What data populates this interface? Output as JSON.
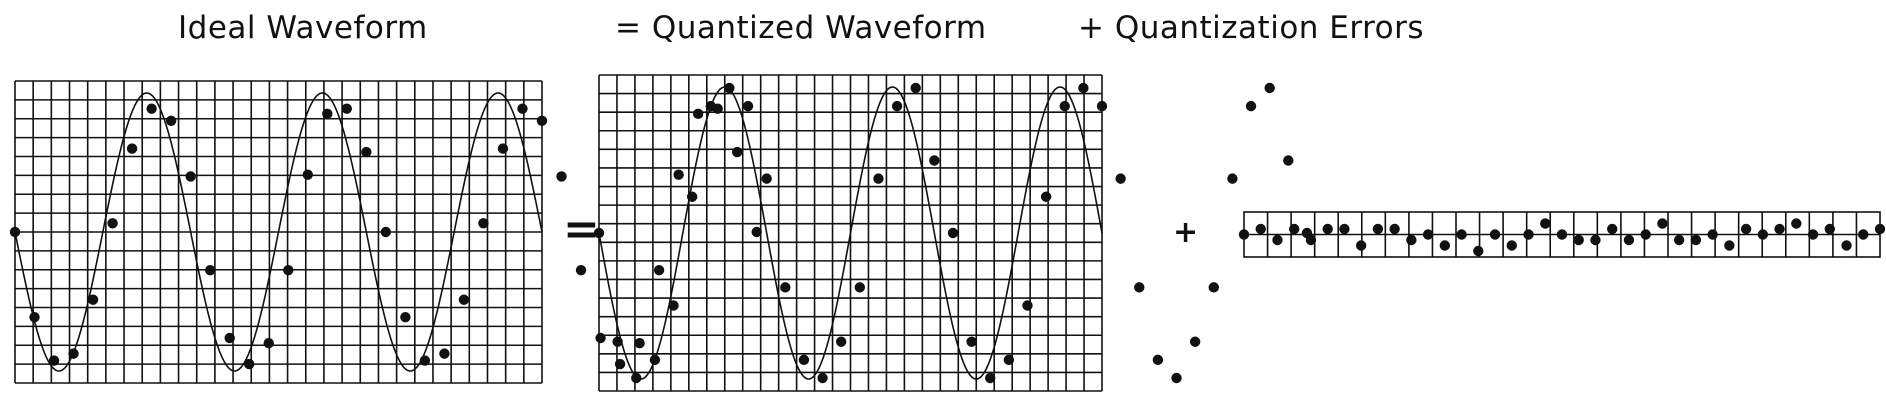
{
  "titles": {
    "ideal": "Ideal Waveform",
    "quantized": "= Quantized Waveform",
    "errors": "+ Quantization Errors"
  },
  "operators": {
    "equals": "=",
    "plus": "+"
  },
  "colors": {
    "line": "#111111",
    "background": "#ffffff"
  },
  "waveform": {
    "cycles": 3,
    "samples_per_cycle": 9,
    "start_phase": "zero",
    "initial_direction": "down",
    "ideal_levels": [
      8,
      3.1,
      0.6,
      1,
      4.1,
      8.5,
      12.8,
      15.1,
      14.4,
      11.2,
      5.8,
      1.9,
      0.4,
      1.6,
      5.8,
      11.3,
      14.8,
      15.1,
      12.6,
      8,
      3.1,
      0.6,
      1,
      4.1,
      8.5,
      12.8,
      15.1,
      14.4,
      11.2,
      5.8,
      1.9,
      0.4,
      1.6,
      5.8,
      11.3,
      14.8,
      15.1,
      12.6,
      8
    ],
    "quantized_levels": [
      8,
      2,
      0,
      1,
      4,
      10,
      15,
      16,
      15,
      11,
      5,
      1,
      0,
      2,
      5,
      11,
      15,
      16,
      12,
      8,
      2,
      0,
      1,
      4,
      10,
      15,
      16,
      15,
      11,
      5,
      1,
      0,
      2,
      5,
      11,
      15,
      16,
      12,
      8
    ],
    "error_levels": [
      0,
      1,
      -1,
      1,
      -1,
      1,
      1,
      -2,
      1,
      1,
      -1,
      0,
      -2,
      0,
      -3,
      0,
      -2,
      0,
      2,
      0,
      -1,
      -1,
      1,
      -1,
      0,
      2,
      -1,
      -1,
      0,
      -2,
      1,
      0,
      1,
      2,
      0,
      1,
      -2,
      0,
      1
    ]
  }
}
